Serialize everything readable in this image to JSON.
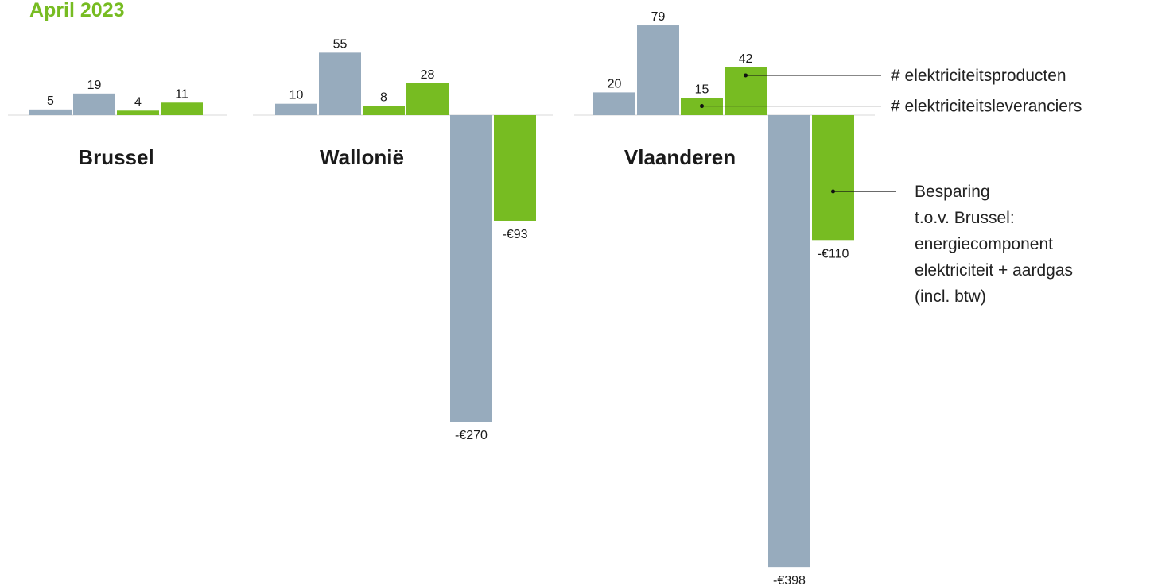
{
  "chart_data": {
    "type": "bar",
    "title": "April 2023",
    "categories": [
      "Brussel",
      "Wallonië",
      "Vlaanderen"
    ],
    "series": [
      {
        "color": "#97abbd",
        "values": [
          5,
          10,
          20
        ]
      },
      {
        "color": "#97abbd",
        "values": [
          19,
          55,
          79
        ]
      },
      {
        "name": "# elektriciteitsleveranciers",
        "color": "#77bc22",
        "values": [
          4,
          8,
          15
        ]
      },
      {
        "name": "# elektriciteitsproducten",
        "color": "#77bc22",
        "values": [
          11,
          28,
          42
        ]
      },
      {
        "color": "#97abbd",
        "values": [
          null,
          -270,
          -398
        ],
        "value_labels": [
          null,
          "-€270",
          "-€398"
        ]
      },
      {
        "name": [
          "Besparing",
          "t.o.v. Brussel:",
          "energiecomponent",
          "elektriciteit + aardgas",
          "(incl. btw)"
        ],
        "color": "#77bc22",
        "values": [
          null,
          -93,
          -110
        ],
        "value_labels": [
          null,
          "-€93",
          "-€110"
        ]
      }
    ]
  }
}
